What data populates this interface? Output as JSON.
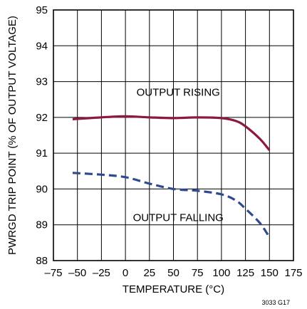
{
  "chart_data": {
    "type": "line",
    "title": "",
    "xlabel": "TEMPERATURE (°C)",
    "ylabel": "PWRGD TRIP POINT (% OF OUTPUT VOLTAGE)",
    "xlim": [
      -75,
      175
    ],
    "ylim": [
      88,
      95
    ],
    "x_ticks": [
      -75,
      -50,
      -25,
      0,
      25,
      50,
      75,
      100,
      125,
      150,
      175
    ],
    "x_tick_labels": [
      "–75",
      "–50",
      "–25",
      "0",
      "25",
      "50",
      "75",
      "100",
      "125",
      "150",
      "175"
    ],
    "y_ticks": [
      88,
      89,
      90,
      91,
      92,
      93,
      94,
      95
    ],
    "y_tick_labels": [
      "88",
      "89",
      "90",
      "91",
      "92",
      "93",
      "94",
      "95"
    ],
    "grid": true,
    "legend": "none",
    "series": [
      {
        "name": "OUTPUT RISING",
        "style": "solid",
        "color": "#8b1a3c",
        "x": [
          -55,
          -25,
          0,
          25,
          50,
          75,
          100,
          115,
          125,
          140,
          150
        ],
        "y": [
          91.95,
          92.0,
          92.03,
          92.0,
          91.98,
          92.0,
          91.98,
          91.9,
          91.75,
          91.4,
          91.08
        ]
      },
      {
        "name": "OUTPUT FALLING",
        "style": "dashed",
        "color": "#2f4a8f",
        "x": [
          -55,
          -25,
          0,
          25,
          50,
          75,
          100,
          115,
          125,
          140,
          150
        ],
        "y": [
          90.45,
          90.4,
          90.33,
          90.15,
          90.0,
          89.95,
          89.85,
          89.68,
          89.45,
          89.05,
          88.65
        ]
      }
    ],
    "annotations": [
      {
        "text": "OUTPUT RISING",
        "x": 55,
        "y": 92.7
      },
      {
        "text": "OUTPUT FALLING",
        "x": 55,
        "y": 89.2
      }
    ],
    "footnote": "3033 G17"
  }
}
